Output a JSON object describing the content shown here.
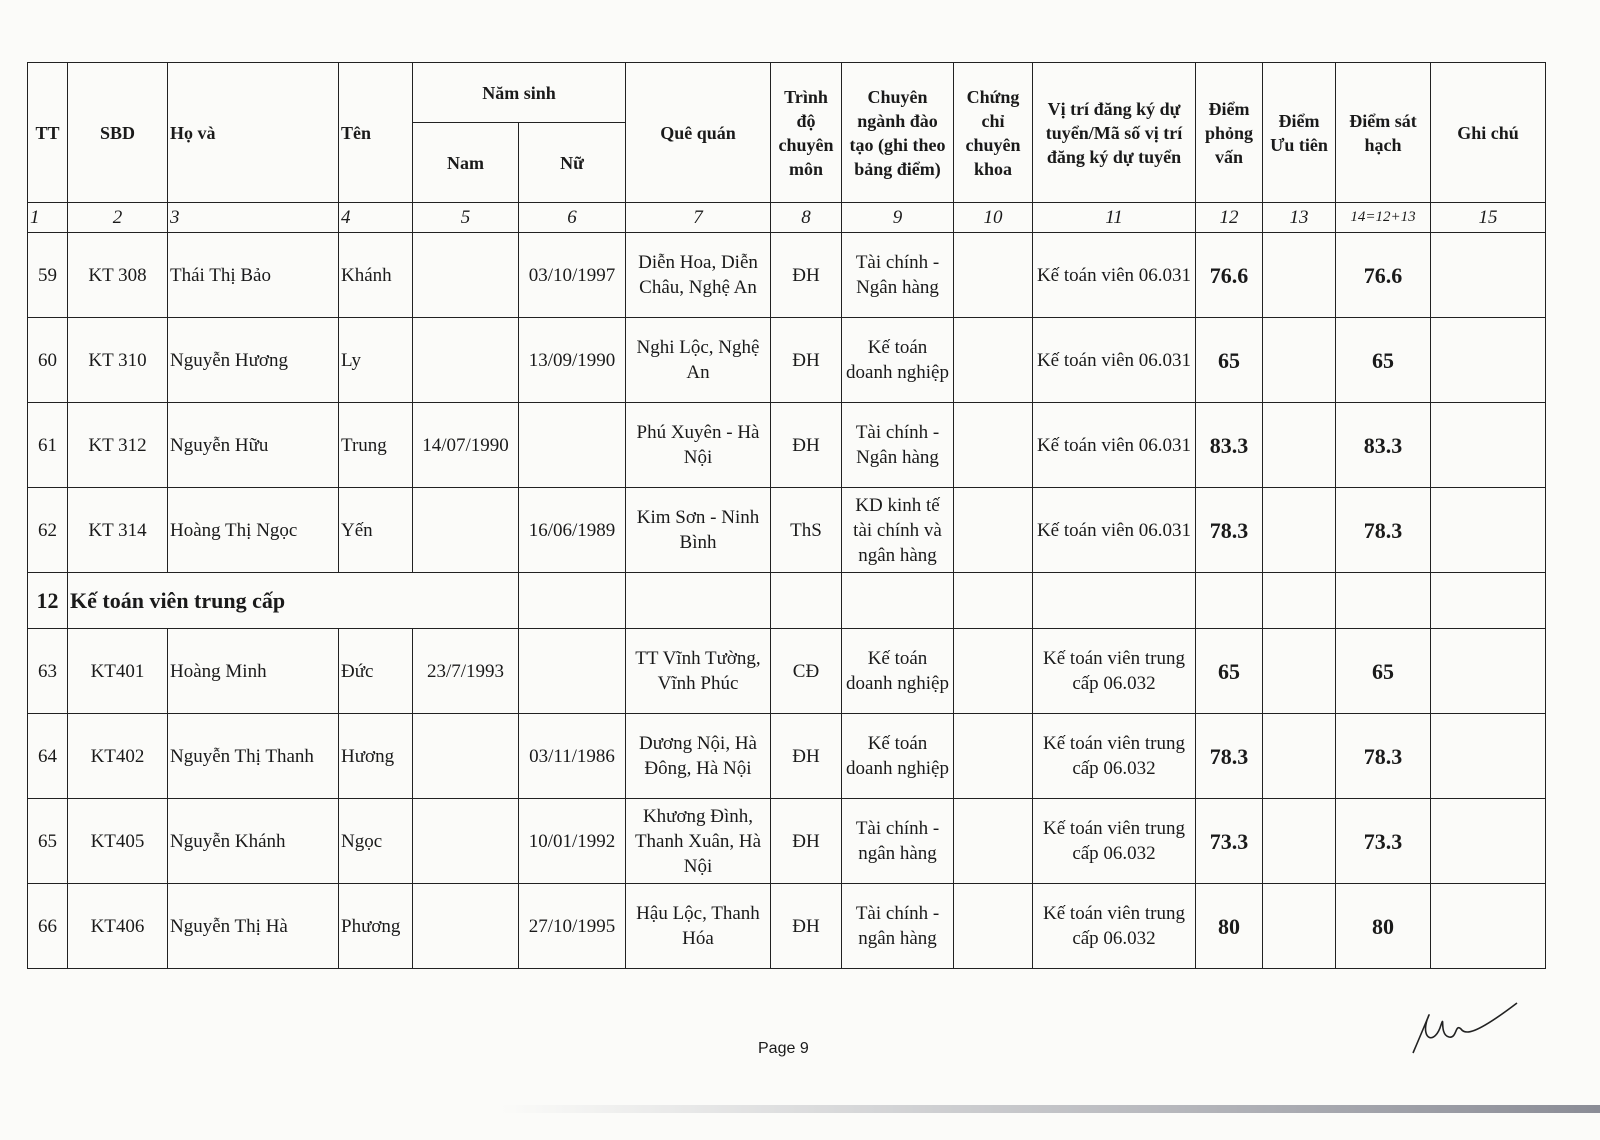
{
  "headers": {
    "tt": "TT",
    "sbd": "SBD",
    "ho_va": "Họ và",
    "ten": "Tên",
    "nam_sinh": "Năm sinh",
    "nam": "Nam",
    "nu": "Nữ",
    "que_quan": "Quê quán",
    "trinh_do": "Trình độ chuyên môn",
    "chuyen_nganh": "Chuyên ngành đào tạo (ghi theo bảng điểm)",
    "chung_chi": "Chứng chỉ chuyên khoa",
    "vi_tri": "Vị trí đăng ký dự tuyển/Mã số vị trí đăng ký dự tuyển",
    "diem_pv": "Điểm phỏng vấn",
    "diem_ut": "Điểm Ưu tiên",
    "diem_sh": "Điểm sát hạch",
    "ghi_chu": "Ghi chú"
  },
  "column_numbers": [
    "1",
    "2",
    "3",
    "4",
    "5",
    "6",
    "7",
    "8",
    "9",
    "10",
    "11",
    "12",
    "13",
    "14=12+13",
    "15"
  ],
  "rows_a": [
    {
      "tt": "59",
      "sbd": "KT 308",
      "ho": "Thái Thị Bảo",
      "ten": "Khánh",
      "nam": "",
      "nu": "03/10/1997",
      "que": "Diễn Hoa, Diễn Châu, Nghệ An",
      "td": "ĐH",
      "cn": "Tài chính - Ngân hàng",
      "cc": "",
      "vt": "Kế toán viên 06.031",
      "pv": "76.6",
      "ut": "",
      "sh": "76.6",
      "gc": ""
    },
    {
      "tt": "60",
      "sbd": "KT 310",
      "ho": "Nguyễn Hương",
      "ten": "Ly",
      "nam": "",
      "nu": "13/09/1990",
      "que": "Nghi Lộc, Nghệ An",
      "td": "ĐH",
      "cn": "Kế toán doanh nghiệp",
      "cc": "",
      "vt": "Kế toán viên 06.031",
      "pv": "65",
      "ut": "",
      "sh": "65",
      "gc": ""
    },
    {
      "tt": "61",
      "sbd": "KT 312",
      "ho": "Nguyễn Hữu",
      "ten": "Trung",
      "nam": "14/07/1990",
      "nu": "",
      "que": "Phú Xuyên - Hà Nội",
      "td": "ĐH",
      "cn": "Tài chính - Ngân hàng",
      "cc": "",
      "vt": "Kế toán viên 06.031",
      "pv": "83.3",
      "ut": "",
      "sh": "83.3",
      "gc": ""
    },
    {
      "tt": "62",
      "sbd": "KT 314",
      "ho": "Hoàng Thị Ngọc",
      "ten": "Yến",
      "nam": "",
      "nu": "16/06/1989",
      "que": "Kim Sơn - Ninh Bình",
      "td": "ThS",
      "cn": "KD kinh tế tài chính và ngân hàng",
      "cc": "",
      "vt": "Kế toán viên 06.031",
      "pv": "78.3",
      "ut": "",
      "sh": "78.3",
      "gc": ""
    }
  ],
  "section": {
    "number": "12",
    "title": "Kế toán viên trung cấp"
  },
  "rows_b": [
    {
      "tt": "63",
      "sbd": "KT401",
      "ho": "Hoàng Minh",
      "ten": "Đức",
      "nam": "23/7/1993",
      "nu": "",
      "que": "TT Vĩnh Tường, Vĩnh Phúc",
      "td": "CĐ",
      "cn": "Kế toán doanh nghiệp",
      "cc": "",
      "vt": "Kế toán viên trung cấp 06.032",
      "pv": "65",
      "ut": "",
      "sh": "65",
      "gc": ""
    },
    {
      "tt": "64",
      "sbd": "KT402",
      "ho": "Nguyễn Thị Thanh",
      "ten": "Hương",
      "nam": "",
      "nu": "03/11/1986",
      "que": "Dương Nội, Hà Đông, Hà Nội",
      "td": "ĐH",
      "cn": "Kế toán doanh nghiệp",
      "cc": "",
      "vt": "Kế toán viên trung cấp 06.032",
      "pv": "78.3",
      "ut": "",
      "sh": "78.3",
      "gc": ""
    },
    {
      "tt": "65",
      "sbd": "KT405",
      "ho": "Nguyễn Khánh",
      "ten": "Ngọc",
      "nam": "",
      "nu": "10/01/1992",
      "que": "Khương Đình, Thanh Xuân, Hà Nội",
      "td": "ĐH",
      "cn": "Tài chính - ngân hàng",
      "cc": "",
      "vt": "Kế toán viên trung cấp 06.032",
      "pv": "73.3",
      "ut": "",
      "sh": "73.3",
      "gc": ""
    },
    {
      "tt": "66",
      "sbd": "KT406",
      "ho": "Nguyễn Thị Hà",
      "ten": "Phương",
      "nam": "",
      "nu": "27/10/1995",
      "que": "Hậu Lộc, Thanh Hóa",
      "td": "ĐH",
      "cn": "Tài chính - ngân hàng",
      "cc": "",
      "vt": "Kế toán viên trung cấp 06.032",
      "pv": "80",
      "ut": "",
      "sh": "80",
      "gc": ""
    }
  ],
  "footer": {
    "page": "Page 9"
  }
}
